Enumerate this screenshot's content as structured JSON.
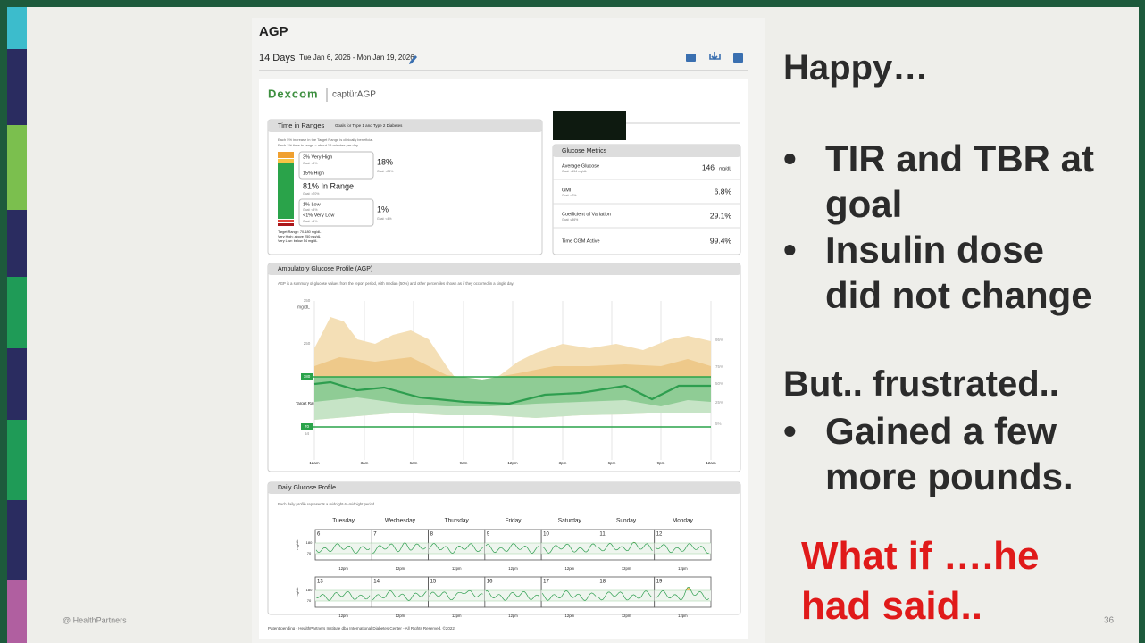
{
  "slide": {
    "heading1": "Happy…",
    "bullets1": [
      "TIR and TBR at goal",
      "Insulin dose did not change"
    ],
    "heading2": "But.. frustrated..",
    "bullets2": [
      "Gained a few more pounds."
    ],
    "callout": "What if ….he had said..",
    "footer_left": "@ HealthPartners",
    "page_number": "36"
  },
  "report": {
    "title": "AGP",
    "period": "14 Days",
    "date_range": "Tue Jan 6, 2026 - Mon Jan 19, 2026",
    "brand": "Dexcom",
    "product": "captürAGP",
    "time_in_ranges": {
      "title": "Time in Ranges",
      "goals": "Goals for Type 1 and Type 2 Diabetes",
      "description": [
        "Each 5% increase in the Target Range is clinically beneficial.",
        "Each 1% time in range = about 15 minutes per day."
      ],
      "very_high": "3% Very High",
      "very_high_goal": "Goal: <5%",
      "high": "15% High",
      "high_total": "18%",
      "high_total_goal": "Goal: <25%",
      "in_range": "81% In Range",
      "in_range_goal": "Goal: >70%",
      "low": "1% Low",
      "low_goal": "Goal: <4%",
      "very_low": "<1% Very Low",
      "very_low_goal": "Goal: <1%",
      "low_total": "1%",
      "low_total_goal": "Goal: <4%",
      "notes": [
        "Target Range: 70-180 mg/dL",
        "Very High: above 250 mg/dL",
        "Very Low: below 54 mg/dL"
      ]
    },
    "metrics": {
      "title": "Glucose Metrics",
      "rows": [
        {
          "label": "Average Glucose",
          "goal": "Goal: <154 mg/dL",
          "value": "146",
          "unit": "mg/dL"
        },
        {
          "label": "GMI",
          "goal": "Goal: <7%",
          "value": "6.8%"
        },
        {
          "label": "Coefficient of Variation",
          "goal": "Goal: ≤36%",
          "value": "29.1%"
        },
        {
          "label": "Time CGM Active",
          "value": "99.4%"
        }
      ]
    },
    "agp": {
      "title": "Ambulatory Glucose Profile (AGP)",
      "description": "AGP is a summary of glucose values from the report period, with median (50%) and other percentiles shown as if they occurred in a single day.",
      "unit": "mg/dL",
      "y_labels": [
        "350",
        "250",
        "180",
        "70",
        "54"
      ],
      "target_label": "Target Range",
      "x_labels": [
        "12am",
        "3am",
        "6am",
        "9am",
        "12pm",
        "3pm",
        "6pm",
        "9pm",
        "12am"
      ],
      "percentiles": [
        "95%",
        "75%",
        "50%",
        "25%",
        "5%"
      ]
    },
    "daily": {
      "title": "Daily Glucose Profile",
      "description": "Each daily profile represents a midnight-to-midnight period.",
      "days": [
        "Tuesday",
        "Wednesday",
        "Thursday",
        "Friday",
        "Saturday",
        "Sunday",
        "Monday"
      ],
      "weeks": [
        [
          "6",
          "7",
          "8",
          "9",
          "10",
          "11",
          "12"
        ],
        [
          "13",
          "14",
          "15",
          "16",
          "17",
          "18",
          "19"
        ]
      ],
      "noon": "12pm",
      "unit": "mg/dL",
      "y_labels": [
        "180",
        "70"
      ]
    },
    "footer": "Patent pending - HealthPartners Institute dba International Diabetes Center - All Rights Reserved. ©2022"
  }
}
